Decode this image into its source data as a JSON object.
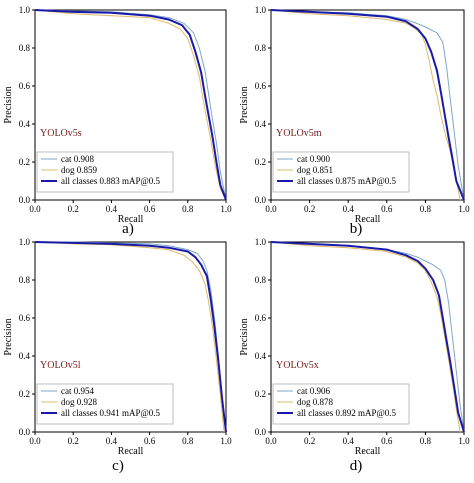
{
  "figure": {
    "colors": {
      "cat": "#7fa7c9",
      "dog": "#e0b86a",
      "all": "#1a1aa8",
      "model_label": "#7a1a1a"
    }
  },
  "chart_data": [
    {
      "type": "line",
      "caption": "a)",
      "model": "YOLOv5s",
      "xlabel": "Recall",
      "ylabel": "Precision",
      "xlim": [
        0,
        1
      ],
      "ylim": [
        0,
        1
      ],
      "xticks": [
        "0.0",
        "0.2",
        "0.4",
        "0.6",
        "0.8",
        "1.0"
      ],
      "yticks": [
        "0.0",
        "0.2",
        "0.4",
        "0.6",
        "0.8",
        "1.0"
      ],
      "legend": [
        "cat 0.908",
        "dog 0.859",
        "all classes 0.883 mAP@0.5"
      ],
      "series": [
        {
          "name": "cat",
          "x": [
            0,
            0.2,
            0.4,
            0.6,
            0.7,
            0.78,
            0.83,
            0.86,
            0.89,
            0.91,
            0.93,
            0.95,
            0.97,
            1.0
          ],
          "y": [
            1,
            0.995,
            0.99,
            0.975,
            0.96,
            0.93,
            0.88,
            0.8,
            0.68,
            0.55,
            0.42,
            0.3,
            0.15,
            0
          ]
        },
        {
          "name": "dog",
          "x": [
            0,
            0.2,
            0.4,
            0.6,
            0.7,
            0.76,
            0.8,
            0.83,
            0.86,
            0.88,
            0.9,
            0.92,
            0.94,
            0.97,
            1.0
          ],
          "y": [
            1,
            0.98,
            0.97,
            0.96,
            0.93,
            0.9,
            0.85,
            0.76,
            0.65,
            0.53,
            0.42,
            0.32,
            0.2,
            0.06,
            0
          ]
        },
        {
          "name": "all classes",
          "x": [
            0,
            0.2,
            0.4,
            0.6,
            0.7,
            0.77,
            0.81,
            0.84,
            0.87,
            0.89,
            0.91,
            0.93,
            0.95,
            0.97,
            1.0
          ],
          "y": [
            1,
            0.99,
            0.985,
            0.97,
            0.95,
            0.92,
            0.87,
            0.78,
            0.67,
            0.55,
            0.44,
            0.33,
            0.2,
            0.08,
            0
          ]
        }
      ]
    },
    {
      "type": "line",
      "caption": "b)",
      "model": "YOLOv5m",
      "xlabel": "Recall",
      "ylabel": "Precision",
      "xlim": [
        0,
        1
      ],
      "ylim": [
        0,
        1
      ],
      "xticks": [
        "0.0",
        "0.2",
        "0.4",
        "0.6",
        "0.8",
        "1.0"
      ],
      "yticks": [
        "0.0",
        "0.2",
        "0.4",
        "0.6",
        "0.8",
        "1.0"
      ],
      "legend": [
        "cat 0.900",
        "dog 0.851",
        "all classes 0.875 mAP@0.5"
      ],
      "series": [
        {
          "name": "cat",
          "x": [
            0,
            0.2,
            0.4,
            0.6,
            0.7,
            0.78,
            0.82,
            0.86,
            0.89,
            0.91,
            0.93,
            0.95,
            0.97,
            1.0
          ],
          "y": [
            1,
            0.99,
            0.985,
            0.97,
            0.95,
            0.92,
            0.9,
            0.88,
            0.83,
            0.7,
            0.52,
            0.35,
            0.18,
            0
          ]
        },
        {
          "name": "dog",
          "x": [
            0,
            0.2,
            0.4,
            0.6,
            0.7,
            0.75,
            0.78,
            0.8,
            0.82,
            0.84,
            0.86,
            0.88,
            0.9,
            0.93,
            0.96,
            0.98
          ],
          "y": [
            1,
            0.98,
            0.97,
            0.95,
            0.93,
            0.9,
            0.87,
            0.82,
            0.73,
            0.63,
            0.55,
            0.45,
            0.36,
            0.25,
            0.1,
            0
          ]
        },
        {
          "name": "all classes",
          "x": [
            0,
            0.2,
            0.4,
            0.6,
            0.7,
            0.76,
            0.8,
            0.83,
            0.86,
            0.88,
            0.9,
            0.92,
            0.94,
            0.96,
            1.0
          ],
          "y": [
            1,
            0.99,
            0.98,
            0.965,
            0.94,
            0.9,
            0.85,
            0.78,
            0.68,
            0.57,
            0.45,
            0.33,
            0.22,
            0.1,
            0
          ]
        }
      ]
    },
    {
      "type": "line",
      "caption": "c)",
      "model": "YOLOv5l",
      "xlabel": "Recall",
      "ylabel": "Precision",
      "xlim": [
        0,
        1
      ],
      "ylim": [
        0,
        1
      ],
      "xticks": [
        "0.0",
        "0.2",
        "0.4",
        "0.6",
        "0.8",
        "1.0"
      ],
      "yticks": [
        "0.0",
        "0.2",
        "0.4",
        "0.6",
        "0.8",
        "1.0"
      ],
      "legend": [
        "cat 0.954",
        "dog 0.928",
        "all classes 0.941 mAP@0.5"
      ],
      "series": [
        {
          "name": "cat",
          "x": [
            0,
            0.2,
            0.4,
            0.6,
            0.7,
            0.8,
            0.85,
            0.88,
            0.9,
            0.92,
            0.94,
            0.96,
            0.98,
            1.0
          ],
          "y": [
            1,
            1,
            0.995,
            0.99,
            0.98,
            0.96,
            0.94,
            0.9,
            0.85,
            0.75,
            0.6,
            0.4,
            0.18,
            0
          ]
        },
        {
          "name": "dog",
          "x": [
            0,
            0.2,
            0.4,
            0.6,
            0.7,
            0.78,
            0.82,
            0.86,
            0.89,
            0.91,
            0.93,
            0.95,
            0.97,
            0.99
          ],
          "y": [
            1,
            0.99,
            0.985,
            0.97,
            0.96,
            0.93,
            0.9,
            0.85,
            0.78,
            0.68,
            0.55,
            0.38,
            0.2,
            0
          ]
        },
        {
          "name": "all classes",
          "x": [
            0,
            0.2,
            0.4,
            0.6,
            0.7,
            0.8,
            0.84,
            0.87,
            0.9,
            0.92,
            0.94,
            0.96,
            0.98,
            1.0
          ],
          "y": [
            1,
            0.995,
            0.99,
            0.98,
            0.97,
            0.95,
            0.92,
            0.88,
            0.82,
            0.7,
            0.55,
            0.37,
            0.17,
            0
          ]
        }
      ]
    },
    {
      "type": "line",
      "caption": "d)",
      "model": "YOLOv5x",
      "xlabel": "Recall",
      "ylabel": "Precision",
      "xlim": [
        0,
        1
      ],
      "ylim": [
        0,
        1
      ],
      "xticks": [
        "0.0",
        "0.2",
        "0.4",
        "0.6",
        "0.8",
        "1.0"
      ],
      "yticks": [
        "0.0",
        "0.2",
        "0.4",
        "0.6",
        "0.8",
        "1.0"
      ],
      "legend": [
        "cat 0.906",
        "dog 0.878",
        "all classes 0.892 mAP@0.5"
      ],
      "series": [
        {
          "name": "cat",
          "x": [
            0,
            0.2,
            0.4,
            0.6,
            0.7,
            0.76,
            0.8,
            0.84,
            0.88,
            0.9,
            0.92,
            0.94,
            0.96,
            0.98,
            1.0
          ],
          "y": [
            1,
            0.99,
            0.98,
            0.96,
            0.94,
            0.92,
            0.9,
            0.88,
            0.85,
            0.8,
            0.68,
            0.5,
            0.32,
            0.14,
            0
          ]
        },
        {
          "name": "dog",
          "x": [
            0,
            0.2,
            0.4,
            0.6,
            0.7,
            0.76,
            0.8,
            0.83,
            0.86,
            0.88,
            0.9,
            0.92,
            0.94,
            0.96,
            0.98
          ],
          "y": [
            1,
            0.98,
            0.97,
            0.95,
            0.92,
            0.89,
            0.85,
            0.79,
            0.71,
            0.62,
            0.5,
            0.38,
            0.26,
            0.12,
            0
          ]
        },
        {
          "name": "all classes",
          "x": [
            0,
            0.2,
            0.4,
            0.6,
            0.7,
            0.76,
            0.8,
            0.84,
            0.87,
            0.89,
            0.91,
            0.93,
            0.95,
            0.97,
            1.0
          ],
          "y": [
            1,
            0.99,
            0.98,
            0.96,
            0.93,
            0.9,
            0.86,
            0.8,
            0.72,
            0.6,
            0.48,
            0.36,
            0.23,
            0.1,
            0
          ]
        }
      ]
    }
  ]
}
